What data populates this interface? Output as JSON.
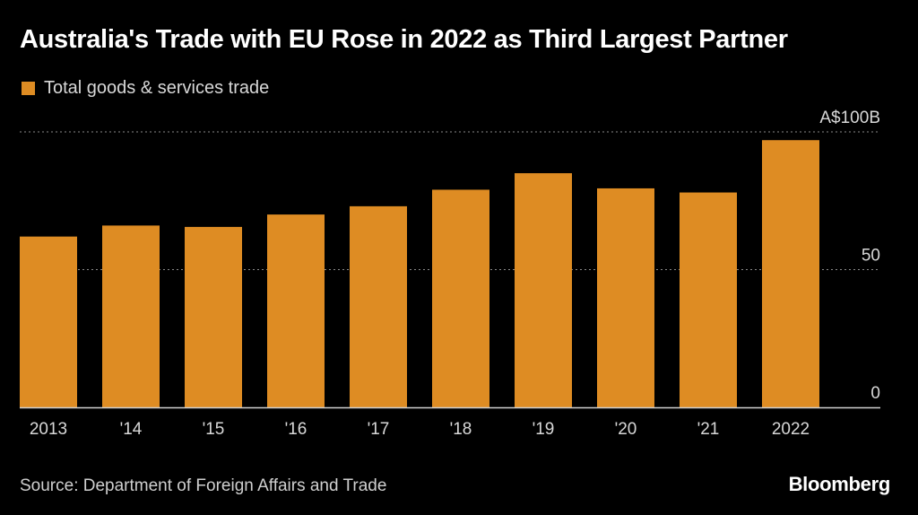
{
  "chart_data": {
    "type": "bar",
    "title": "Australia's Trade with EU Rose in 2022 as Third Largest Partner",
    "legend": [
      "Total goods & services trade"
    ],
    "categories": [
      "2013",
      "'14",
      "'15",
      "'16",
      "'17",
      "'18",
      "'19",
      "'20",
      "'21",
      "2022"
    ],
    "series": [
      {
        "name": "Total goods & services trade",
        "values": [
          62,
          66,
          65.5,
          70,
          73,
          79,
          85,
          79.5,
          78,
          97
        ]
      }
    ],
    "y_ticks": [
      {
        "value": 100,
        "label": "A$100B"
      },
      {
        "value": 50,
        "label": "50"
      },
      {
        "value": 0,
        "label": "0"
      }
    ],
    "ylim": [
      0,
      100
    ],
    "xlabel": "",
    "ylabel": "",
    "grid": true
  },
  "footer": {
    "source": "Source: Department of Foreign Affairs and Trade",
    "brand": "Bloomberg"
  },
  "colors": {
    "bar": "#DE8C23",
    "grid": "#8a8a8a",
    "text": "#d8d8d8"
  }
}
